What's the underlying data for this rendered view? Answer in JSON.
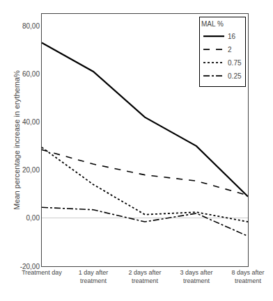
{
  "chart_data": {
    "type": "line",
    "categories": [
      "Treatment day",
      "1 day after\ntreatment",
      "2 days after\ntreatment",
      "3 days after\ntreatment",
      "8 days after\ntreatment"
    ],
    "series": [
      {
        "name": "16",
        "color": "#000000",
        "line_style": "solid",
        "values": [
          73.0,
          61.0,
          42.0,
          30.0,
          9.0
        ]
      },
      {
        "name": "2",
        "color": "#000000",
        "line_style": "dashed",
        "values": [
          28.5,
          22.5,
          18.0,
          15.5,
          9.5
        ]
      },
      {
        "name": "0.75",
        "color": "#000000",
        "line_style": "dotted",
        "values": [
          29.5,
          14.0,
          1.5,
          2.5,
          -1.5
        ]
      },
      {
        "name": "0.25",
        "color": "#000000",
        "line_style": "dashdot",
        "values": [
          4.5,
          3.5,
          -1.5,
          2.0,
          -7.5
        ]
      }
    ],
    "ylabel": "Mean percentage increase in erythema%",
    "legend_title": "MAL %",
    "ylim": [
      -20,
      85
    ],
    "yticks": [
      {
        "value": -20,
        "label": "-20,00"
      },
      {
        "value": 0,
        "label": "0,00"
      },
      {
        "value": 20,
        "label": "20,00"
      },
      {
        "value": 40,
        "label": "40,00"
      },
      {
        "value": 60,
        "label": "60,00"
      },
      {
        "value": 80,
        "label": "80,00"
      }
    ],
    "grid": false,
    "legend": "upper right"
  }
}
